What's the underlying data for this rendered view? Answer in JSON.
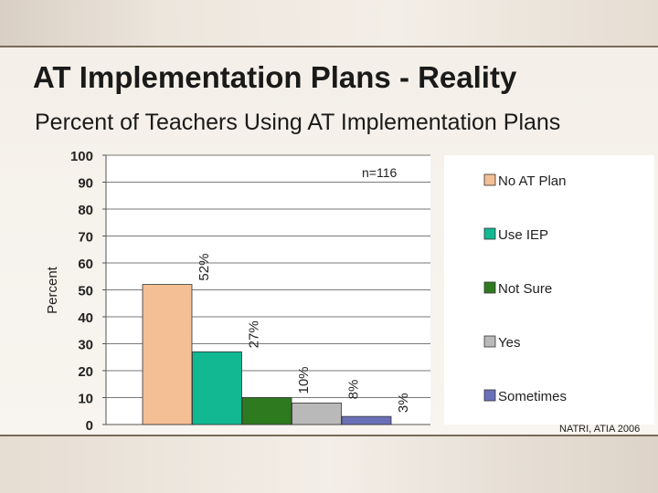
{
  "slide": {
    "title": "AT Implementation Plans - Reality",
    "source": "NATRI, ATIA 2006"
  },
  "chart_data": {
    "type": "bar",
    "title": "Percent of Teachers Using AT Implementation Plans",
    "ylabel": "Percent",
    "xlabel": "",
    "annotation": "n=116",
    "ylim": [
      0,
      100
    ],
    "yticks": [
      0,
      10,
      20,
      30,
      40,
      50,
      60,
      70,
      80,
      90,
      100
    ],
    "grid": true,
    "legend_position": "right",
    "categories": [
      "No AT Plan",
      "Use IEP",
      "Not Sure",
      "Yes",
      "Sometimes"
    ],
    "values": [
      52,
      27,
      10,
      8,
      3
    ],
    "value_labels": [
      "52%",
      "27%",
      "10%",
      "8%",
      "3%"
    ],
    "colors": [
      "#f4bf94",
      "#11b892",
      "#2e7a1f",
      "#b9b9b9",
      "#6a70b8"
    ]
  }
}
